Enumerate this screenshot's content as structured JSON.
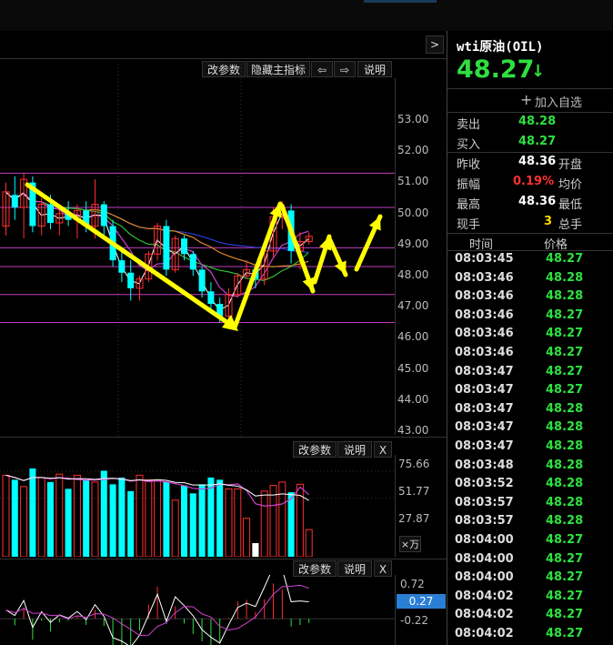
{
  "panel": {
    "nav_arrow": ">",
    "tools": {
      "modify_params": "改参数",
      "hide_main_indicator": "隐藏主指标",
      "back_icon": "⇦",
      "forward_icon": "⇨",
      "help": "说明"
    },
    "price_axis": [
      "53.00",
      "52.00",
      "51.00",
      "50.00",
      "49.00",
      "48.00",
      "47.00",
      "46.00",
      "45.00",
      "44.00",
      "43.00"
    ],
    "volume_tools": {
      "modify_params": "改参数",
      "help": "说明",
      "close": "X"
    },
    "volume_axis": [
      "75.66",
      "51.77",
      "27.87"
    ],
    "volume_unit": "×万",
    "macd_tools": {
      "modify_params": "改参数",
      "help": "说明",
      "close": "X"
    },
    "macd_axis": {
      "top": "0.72",
      "current": "0.27",
      "bottom": "-0.22"
    }
  },
  "quote": {
    "name": "wti原油(OIL)",
    "price": "48.27",
    "direction_icon": "↓",
    "add_watchlist": "加入自选",
    "add_icon": "+",
    "sell_label": "卖出",
    "sell_value": "48.28",
    "buy_label": "买入",
    "buy_value": "48.27",
    "prev_close_label": "昨收",
    "prev_close_value": "48.36",
    "open_label": "开盘",
    "amplitude_label": "振幅",
    "amplitude_value": "0.19%",
    "avg_label": "均价",
    "high_label": "最高",
    "high_value": "48.36",
    "low_label": "最低",
    "current_vol_label": "现手",
    "current_vol_value": "3",
    "total_vol_label": "总手",
    "ticks_header": {
      "time": "时间",
      "price": "价格"
    },
    "ticks": [
      {
        "time": "08:03:45",
        "price": "48.27"
      },
      {
        "time": "08:03:46",
        "price": "48.28"
      },
      {
        "time": "08:03:46",
        "price": "48.28"
      },
      {
        "time": "08:03:46",
        "price": "48.27"
      },
      {
        "time": "08:03:46",
        "price": "48.27"
      },
      {
        "time": "08:03:46",
        "price": "48.27"
      },
      {
        "time": "08:03:47",
        "price": "48.27"
      },
      {
        "time": "08:03:47",
        "price": "48.27"
      },
      {
        "time": "08:03:47",
        "price": "48.28"
      },
      {
        "time": "08:03:47",
        "price": "48.28"
      },
      {
        "time": "08:03:47",
        "price": "48.28"
      },
      {
        "time": "08:03:48",
        "price": "48.28"
      },
      {
        "time": "08:03:52",
        "price": "48.28"
      },
      {
        "time": "08:03:57",
        "price": "48.28"
      },
      {
        "time": "08:03:57",
        "price": "48.28"
      },
      {
        "time": "08:04:00",
        "price": "48.27"
      },
      {
        "time": "08:04:00",
        "price": "48.27"
      },
      {
        "time": "08:04:00",
        "price": "48.27"
      },
      {
        "time": "08:04:02",
        "price": "48.27"
      },
      {
        "time": "08:04:02",
        "price": "48.27"
      },
      {
        "time": "08:04:02",
        "price": "48.27"
      }
    ]
  },
  "chart_data": {
    "type": "candlestick",
    "price_range": [
      42.5,
      53.5
    ],
    "price_ticks": [
      53,
      52,
      51,
      50,
      49,
      48,
      47,
      46,
      45,
      44,
      43
    ],
    "candles": [
      {
        "o": 48.6,
        "h": 50.0,
        "l": 48.3,
        "c": 49.7
      },
      {
        "o": 49.6,
        "h": 50.2,
        "l": 48.8,
        "c": 49.2
      },
      {
        "o": 49.2,
        "h": 50.3,
        "l": 48.2,
        "c": 50.1
      },
      {
        "o": 50.0,
        "h": 50.2,
        "l": 48.4,
        "c": 48.6
      },
      {
        "o": 48.6,
        "h": 49.5,
        "l": 48.3,
        "c": 49.3
      },
      {
        "o": 49.3,
        "h": 49.6,
        "l": 48.5,
        "c": 48.7
      },
      {
        "o": 48.7,
        "h": 49.2,
        "l": 48.3,
        "c": 49.0
      },
      {
        "o": 49.0,
        "h": 49.4,
        "l": 48.6,
        "c": 48.8
      },
      {
        "o": 48.8,
        "h": 49.3,
        "l": 48.2,
        "c": 49.1
      },
      {
        "o": 49.1,
        "h": 49.4,
        "l": 48.4,
        "c": 48.6
      },
      {
        "o": 48.6,
        "h": 50.1,
        "l": 48.2,
        "c": 49.3
      },
      {
        "o": 49.3,
        "h": 49.4,
        "l": 48.3,
        "c": 48.6
      },
      {
        "o": 48.6,
        "h": 48.8,
        "l": 47.3,
        "c": 47.5
      },
      {
        "o": 47.5,
        "h": 47.8,
        "l": 46.8,
        "c": 47.1
      },
      {
        "o": 47.1,
        "h": 47.5,
        "l": 46.2,
        "c": 46.6
      },
      {
        "o": 46.6,
        "h": 47.0,
        "l": 46.2,
        "c": 46.9
      },
      {
        "o": 46.9,
        "h": 47.8,
        "l": 46.8,
        "c": 47.7
      },
      {
        "o": 47.7,
        "h": 48.7,
        "l": 47.5,
        "c": 48.6
      },
      {
        "o": 48.6,
        "h": 48.8,
        "l": 47.0,
        "c": 47.2
      },
      {
        "o": 47.2,
        "h": 48.3,
        "l": 47.1,
        "c": 48.2
      },
      {
        "o": 48.2,
        "h": 48.3,
        "l": 47.5,
        "c": 47.7
      },
      {
        "o": 47.7,
        "h": 47.8,
        "l": 47.0,
        "c": 47.2
      },
      {
        "o": 47.2,
        "h": 47.3,
        "l": 46.3,
        "c": 46.5
      },
      {
        "o": 46.5,
        "h": 46.8,
        "l": 45.9,
        "c": 46.1
      },
      {
        "o": 46.1,
        "h": 46.3,
        "l": 45.5,
        "c": 45.7
      },
      {
        "o": 45.7,
        "h": 46.6,
        "l": 45.6,
        "c": 46.4
      },
      {
        "o": 46.4,
        "h": 47.1,
        "l": 46.3,
        "c": 47.0
      },
      {
        "o": 47.0,
        "h": 47.5,
        "l": 46.9,
        "c": 47.2
      },
      {
        "o": 47.2,
        "h": 47.3,
        "l": 46.6,
        "c": 46.9
      },
      {
        "o": 46.9,
        "h": 47.9,
        "l": 46.7,
        "c": 47.8
      },
      {
        "o": 47.8,
        "h": 49.2,
        "l": 47.6,
        "c": 48.9
      },
      {
        "o": 48.9,
        "h": 49.4,
        "l": 48.5,
        "c": 49.1
      },
      {
        "o": 49.1,
        "h": 49.3,
        "l": 47.4,
        "c": 47.8
      },
      {
        "o": 47.8,
        "h": 48.4,
        "l": 47.2,
        "c": 48.1
      },
      {
        "o": 48.1,
        "h": 48.4,
        "l": 48.0,
        "c": 48.27
      }
    ],
    "horizontal_lines": [
      50.3,
      49.2,
      47.9,
      47.3,
      46.4,
      45.5
    ],
    "volume_range": [
      0,
      90
    ],
    "volume_ticks": [
      75.66,
      51.77,
      27.87
    ],
    "volumes": [
      72,
      68,
      62,
      78,
      70,
      66,
      73,
      60,
      72,
      68,
      66,
      76,
      64,
      70,
      58,
      72,
      68,
      67,
      66,
      50,
      63,
      56,
      64,
      70,
      68,
      60,
      60,
      34,
      12,
      58,
      63,
      66,
      57,
      64,
      24
    ],
    "macd_range": [
      -0.6,
      1.0
    ],
    "macd_ticks": [
      0.72,
      -0.22
    ],
    "macd_current": 0.27
  }
}
